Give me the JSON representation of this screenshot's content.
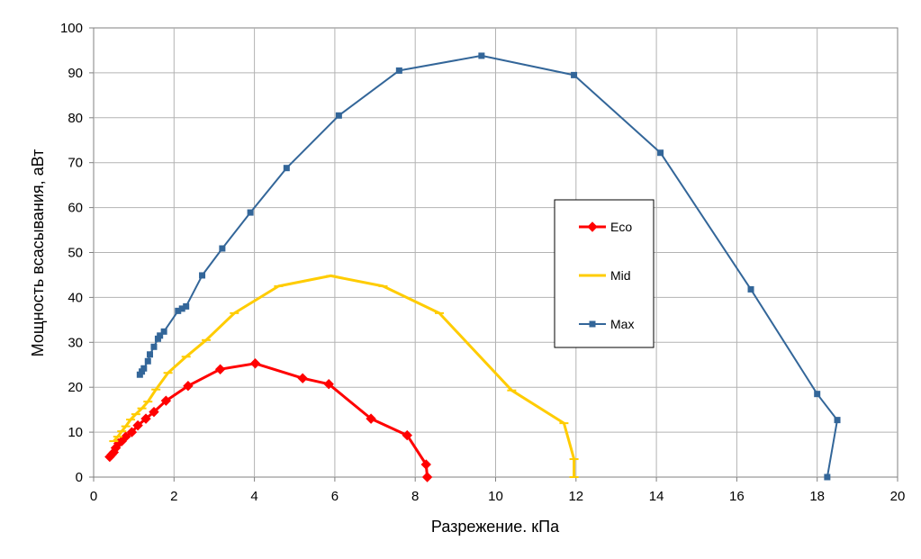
{
  "chart_data": {
    "type": "line",
    "title": "",
    "xlabel": "Разрежение. кПа",
    "ylabel": "Мощность всасывания, аВт",
    "xlim": [
      0,
      20
    ],
    "ylim": [
      0,
      100
    ],
    "xticks": [
      0,
      2,
      4,
      6,
      8,
      10,
      12,
      14,
      16,
      18,
      20
    ],
    "yticks": [
      0,
      10,
      20,
      30,
      40,
      50,
      60,
      70,
      80,
      90,
      100
    ],
    "grid": true,
    "legend_position": "center-right",
    "series": [
      {
        "name": "Eco",
        "color": "#ff0000",
        "marker": "diamond",
        "points": [
          [
            0.4,
            4.5
          ],
          [
            0.45,
            5.0
          ],
          [
            0.5,
            5.5
          ],
          [
            0.55,
            6.5
          ],
          [
            0.62,
            7.5
          ],
          [
            0.7,
            8.0
          ],
          [
            0.8,
            9.0
          ],
          [
            0.95,
            10.0
          ],
          [
            1.1,
            11.5
          ],
          [
            1.3,
            13.0
          ],
          [
            1.5,
            14.5
          ],
          [
            1.8,
            17.0
          ],
          [
            2.35,
            20.3
          ],
          [
            3.15,
            24.0
          ],
          [
            4.02,
            25.3
          ],
          [
            5.2,
            22.0
          ],
          [
            5.85,
            20.7
          ],
          [
            6.9,
            13.0
          ],
          [
            7.8,
            9.3
          ],
          [
            8.27,
            2.8
          ],
          [
            8.3,
            0.0
          ]
        ]
      },
      {
        "name": "Mid",
        "color": "#ffcc00",
        "marker": "dash",
        "points": [
          [
            0.5,
            8.0
          ],
          [
            0.6,
            9.0
          ],
          [
            0.7,
            10.2
          ],
          [
            0.8,
            11.3
          ],
          [
            0.92,
            12.8
          ],
          [
            1.05,
            14.0
          ],
          [
            1.2,
            15.3
          ],
          [
            1.35,
            16.8
          ],
          [
            1.55,
            19.5
          ],
          [
            1.85,
            23.2
          ],
          [
            2.3,
            26.8
          ],
          [
            2.8,
            30.5
          ],
          [
            3.5,
            36.5
          ],
          [
            4.6,
            42.5
          ],
          [
            5.9,
            44.8
          ],
          [
            7.2,
            42.5
          ],
          [
            8.6,
            36.5
          ],
          [
            10.4,
            19.3
          ],
          [
            11.7,
            12.0
          ],
          [
            11.95,
            4.0
          ],
          [
            11.95,
            0.0
          ]
        ]
      },
      {
        "name": "Max",
        "color": "#336699",
        "marker": "square",
        "points": [
          [
            1.15,
            22.8
          ],
          [
            1.2,
            23.5
          ],
          [
            1.25,
            24.2
          ],
          [
            1.35,
            25.8
          ],
          [
            1.4,
            27.3
          ],
          [
            1.5,
            29.0
          ],
          [
            1.6,
            30.8
          ],
          [
            1.65,
            31.5
          ],
          [
            1.75,
            32.4
          ],
          [
            2.1,
            37.0
          ],
          [
            2.2,
            37.5
          ],
          [
            2.3,
            38.0
          ],
          [
            2.7,
            44.9
          ],
          [
            3.2,
            50.9
          ],
          [
            3.9,
            58.9
          ],
          [
            4.8,
            68.8
          ],
          [
            6.1,
            80.5
          ],
          [
            7.6,
            90.5
          ],
          [
            9.65,
            93.8
          ],
          [
            11.95,
            89.5
          ],
          [
            14.1,
            72.2
          ],
          [
            16.35,
            41.8
          ],
          [
            18.0,
            18.5
          ],
          [
            18.5,
            12.7
          ],
          [
            18.25,
            0.0
          ]
        ]
      }
    ]
  }
}
